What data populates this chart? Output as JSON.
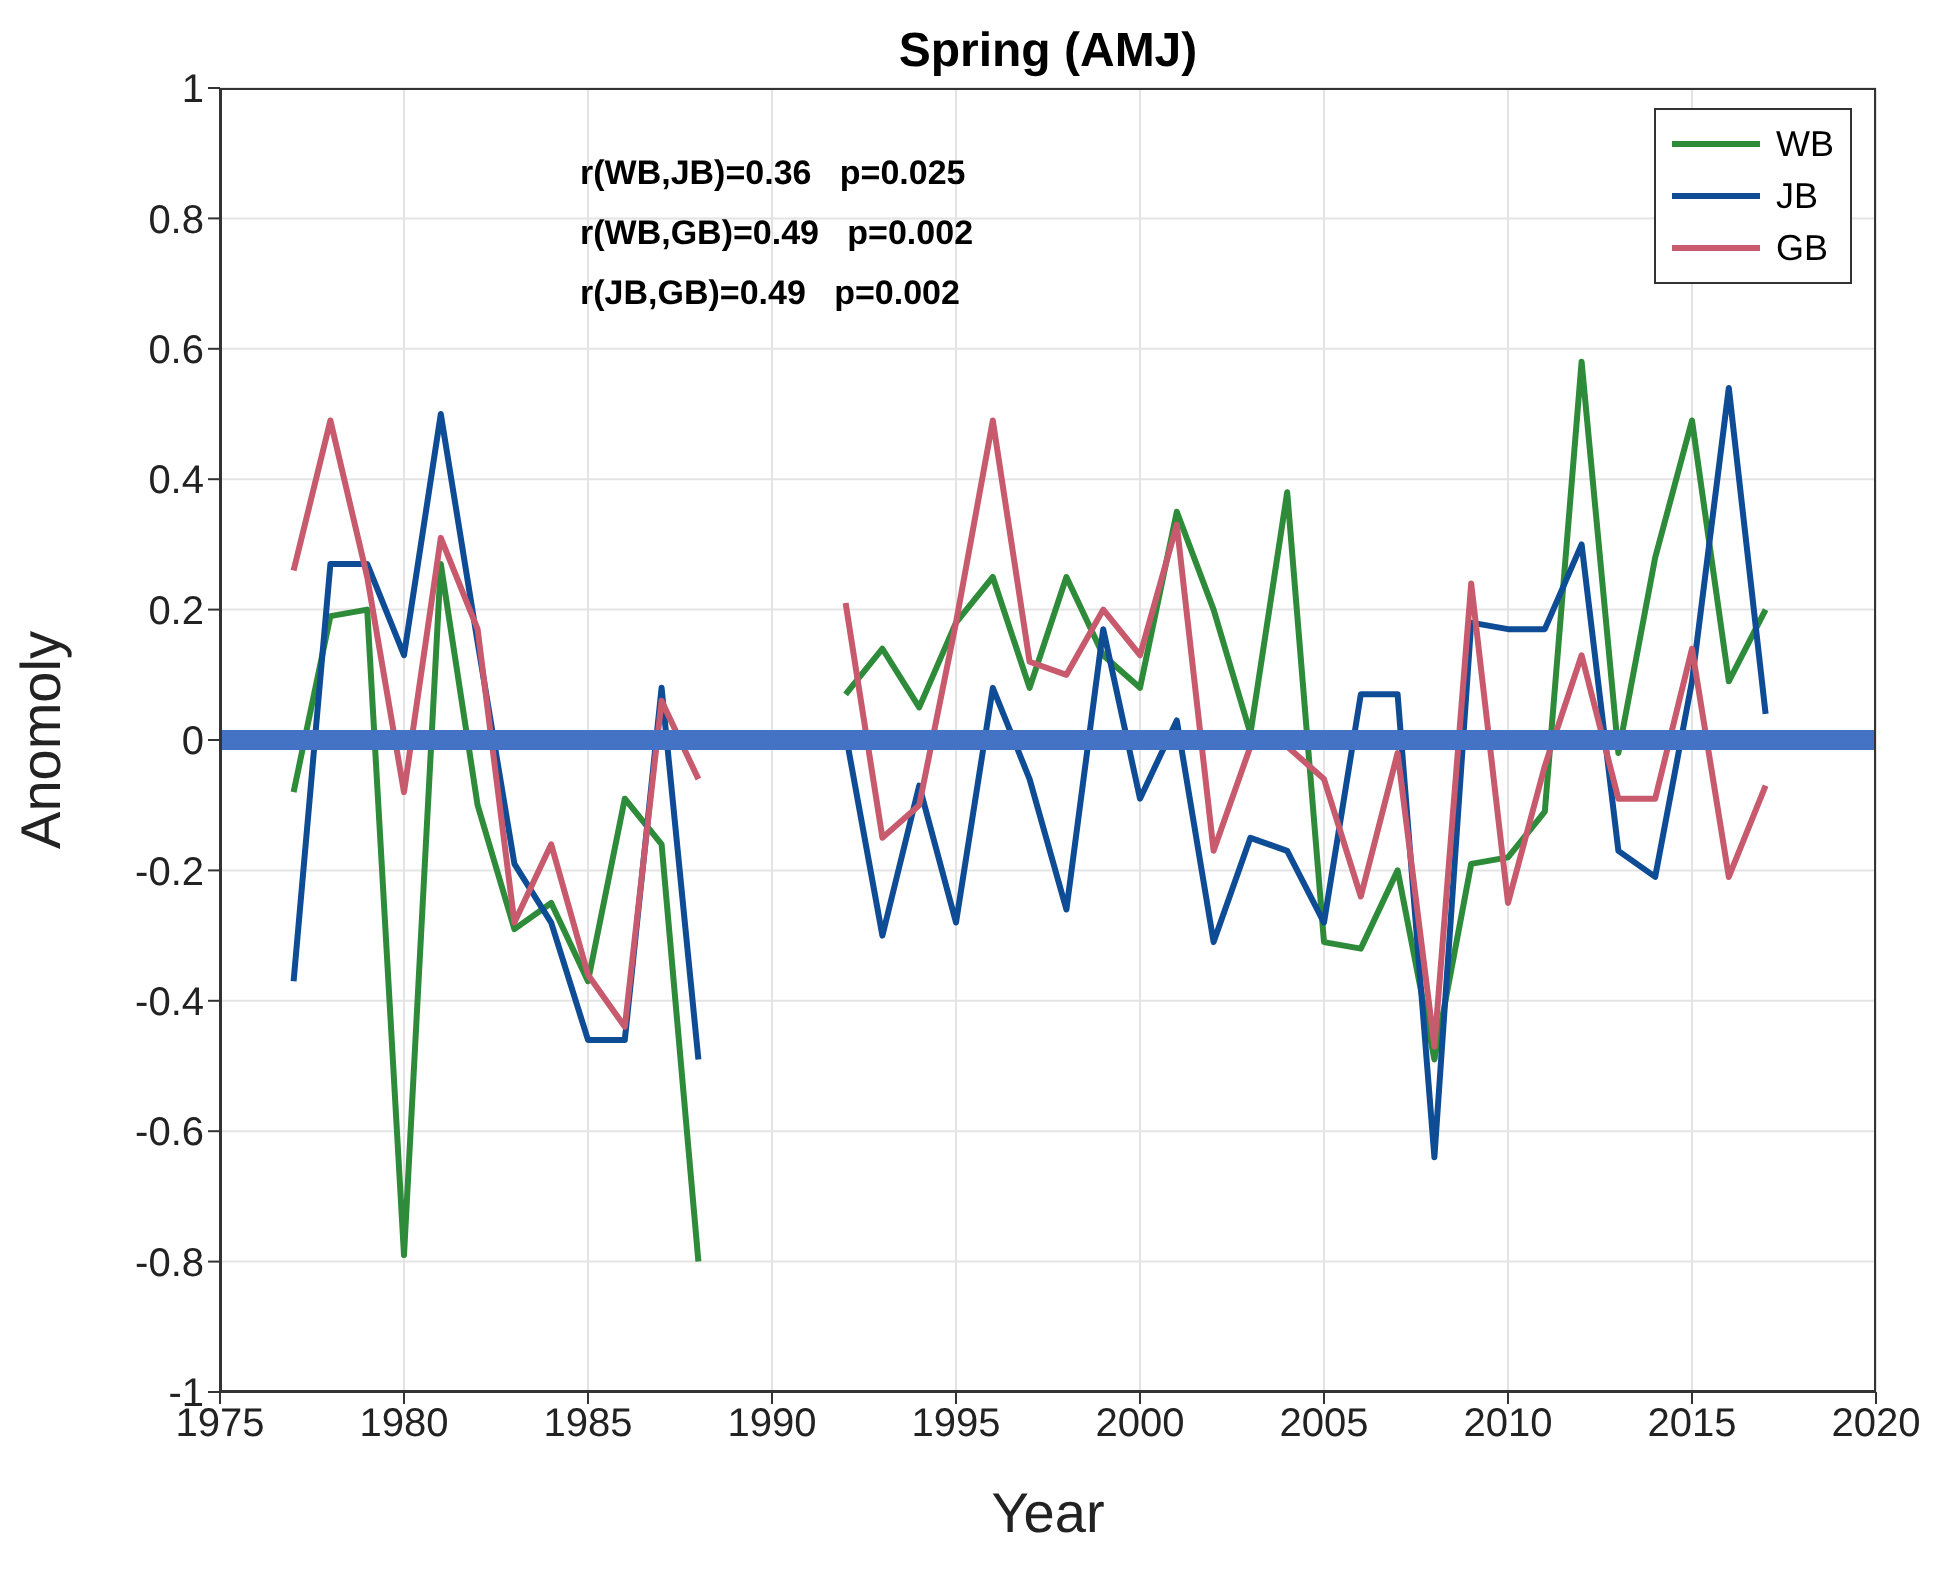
{
  "chart_data": {
    "type": "line",
    "title": "Spring (AMJ)",
    "xlabel": "Year",
    "ylabel": "Anomoly",
    "x": [
      1977,
      1978,
      1979,
      1980,
      1981,
      1982,
      1983,
      1984,
      1985,
      1986,
      1987,
      1988,
      1989,
      1990,
      1991,
      1992,
      1993,
      1994,
      1995,
      1996,
      1997,
      1998,
      1999,
      2000,
      2001,
      2002,
      2003,
      2004,
      2005,
      2006,
      2007,
      2008,
      2009,
      2010,
      2011,
      2012,
      2013,
      2014,
      2015,
      2016,
      2017
    ],
    "series": [
      {
        "name": "WB",
        "color": "#2e8b3a",
        "values": [
          -0.08,
          0.19,
          0.2,
          -0.79,
          0.27,
          -0.1,
          -0.29,
          -0.25,
          -0.37,
          -0.09,
          -0.16,
          -0.8,
          null,
          null,
          null,
          0.07,
          0.14,
          0.05,
          0.18,
          0.25,
          0.08,
          0.25,
          0.13,
          0.08,
          0.35,
          0.2,
          0.01,
          0.38,
          -0.31,
          -0.32,
          -0.2,
          -0.49,
          -0.19,
          -0.18,
          -0.11,
          0.58,
          -0.02,
          0.28,
          0.49,
          0.09,
          0.2
        ]
      },
      {
        "name": "JB",
        "color": "#0f4c96",
        "values": [
          -0.37,
          0.27,
          0.27,
          0.13,
          0.5,
          0.15,
          -0.19,
          -0.28,
          -0.46,
          -0.46,
          0.08,
          -0.49,
          null,
          null,
          null,
          0.01,
          -0.3,
          -0.07,
          -0.28,
          0.08,
          -0.06,
          -0.26,
          0.17,
          -0.09,
          0.03,
          -0.31,
          -0.15,
          -0.17,
          -0.28,
          0.07,
          0.07,
          -0.64,
          0.18,
          0.17,
          0.17,
          0.3,
          -0.17,
          -0.21,
          0.09,
          0.54,
          0.04
        ]
      },
      {
        "name": "GB",
        "color": "#c85a6e",
        "values": [
          0.26,
          0.49,
          0.25,
          -0.08,
          0.31,
          0.17,
          -0.28,
          -0.16,
          -0.36,
          -0.44,
          0.06,
          -0.06,
          null,
          null,
          null,
          0.21,
          -0.15,
          -0.1,
          0.18,
          0.49,
          0.12,
          0.1,
          0.2,
          0.13,
          0.33,
          -0.17,
          -0.01,
          -0.01,
          -0.06,
          -0.24,
          -0.02,
          -0.47,
          0.24,
          -0.25,
          -0.04,
          0.13,
          -0.09,
          -0.09,
          0.14,
          -0.21,
          -0.07
        ]
      }
    ],
    "xlim": [
      1975,
      2020
    ],
    "xticks": [
      1975,
      1980,
      1985,
      1990,
      1995,
      2000,
      2005,
      2010,
      2015,
      2020
    ],
    "ylim": [
      -1,
      1
    ],
    "yticks": [
      -1,
      -0.8,
      -0.6,
      -0.4,
      -0.2,
      0,
      0.2,
      0.4,
      0.6,
      0.8,
      1
    ],
    "ref_lines": [
      {
        "axis": "y",
        "value": 0,
        "color": "#4472c4"
      }
    ],
    "annotations": [
      "r(WB,JB)=0.36   p=0.025",
      "r(WB,GB)=0.49   p=0.002",
      "r(JB,GB)=0.49   p=0.002"
    ],
    "grid": true,
    "legend": "top right",
    "marker": "none",
    "line_style": "solid"
  }
}
